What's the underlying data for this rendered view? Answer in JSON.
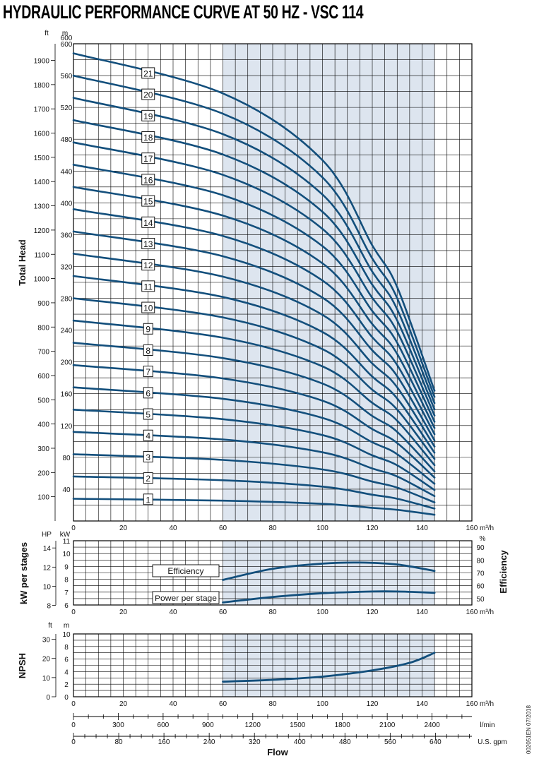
{
  "title": "HYDRAULIC PERFORMANCE CURVE AT 50 HZ - VSC 114",
  "doc_code": "002051EN 07/2018",
  "colors": {
    "curve": "#134f7c",
    "shade": "#dde5ef",
    "grid": "#000000"
  },
  "axes": {
    "flow_unit_m3h": "m³/h",
    "flow_unit_lmin": "l/min",
    "flow_unit_gpm": "U.S. gpm",
    "flow_label": "Flow",
    "head_label": "Total Head",
    "head_unit_ft": "ft",
    "head_unit_m": "m",
    "power_label": "kW per stages",
    "power_unit_hp": "HP",
    "power_unit_kw": "kW",
    "eff_label": "Efficiency",
    "eff_unit": "%",
    "npsh_label": "NPSH",
    "npsh_unit_ft": "ft",
    "npsh_unit_m": "m"
  },
  "chart_data": [
    {
      "type": "line",
      "name": "head",
      "shaded_range": [
        60,
        145
      ],
      "xlim": [
        0,
        160
      ],
      "ylim": [
        0,
        600
      ],
      "x_ticks": [
        0,
        20,
        40,
        60,
        80,
        100,
        120,
        140,
        160
      ],
      "y_ticks_m": [
        40,
        80,
        120,
        160,
        200,
        240,
        280,
        320,
        360,
        400,
        440,
        480,
        520,
        560,
        600
      ],
      "y_ticks_ft": [
        100,
        200,
        300,
        400,
        500,
        600,
        700,
        800,
        900,
        1000,
        1100,
        1200,
        1300,
        1400,
        1500,
        1600,
        1700,
        1800,
        1900
      ],
      "x": [
        0,
        60,
        100,
        120,
        130,
        145
      ],
      "per_stage_head_m": [
        28,
        25.6,
        21.6,
        16.5,
        14,
        7.8
      ],
      "stages": [
        1,
        2,
        3,
        4,
        5,
        6,
        7,
        8,
        9,
        10,
        11,
        12,
        13,
        14,
        15,
        16,
        17,
        18,
        19,
        20,
        21
      ],
      "label_x": 30
    },
    {
      "type": "line",
      "name": "efficiency-power",
      "xlim": [
        0,
        160
      ],
      "shaded_range": [
        60,
        145
      ],
      "left_kw_ticks": [
        6,
        7,
        8,
        9,
        10,
        11
      ],
      "left_hp_ticks": [
        8,
        10,
        12,
        14
      ],
      "right_pct_ticks": [
        50,
        60,
        70,
        80,
        90
      ],
      "series": [
        {
          "name": "Efficiency",
          "axis": "percent",
          "x": [
            60,
            80,
            100,
            115,
            130,
            145
          ],
          "values": [
            64.5,
            73.2,
            77.2,
            78,
            76.5,
            71.5
          ]
        },
        {
          "name": "Power per stage",
          "axis": "kW",
          "x": [
            60,
            80,
            100,
            120,
            130,
            145
          ],
          "values": [
            6.2,
            6.62,
            6.92,
            7.05,
            7.05,
            6.95
          ]
        }
      ]
    },
    {
      "type": "line",
      "name": "npsh",
      "xlim": [
        0,
        160
      ],
      "ylim": [
        0,
        10
      ],
      "shaded_range": [
        60,
        145
      ],
      "y_ticks_m": [
        0,
        2,
        4,
        6,
        8,
        10
      ],
      "y_ticks_ft": [
        0,
        10,
        20,
        30
      ],
      "series": [
        {
          "name": "NPSH",
          "x": [
            60,
            80,
            100,
            120,
            135,
            145
          ],
          "values": [
            2.4,
            2.7,
            3.2,
            4.2,
            5.4,
            7
          ]
        }
      ]
    }
  ],
  "flow_axes": {
    "m3h_ticks": [
      0,
      20,
      40,
      60,
      80,
      100,
      120,
      140,
      160
    ],
    "lmin_ticks": [
      0,
      300,
      600,
      900,
      1200,
      1500,
      1800,
      2100,
      2400
    ],
    "gpm_ticks": [
      0,
      80,
      160,
      240,
      320,
      400,
      480,
      560,
      640
    ]
  }
}
